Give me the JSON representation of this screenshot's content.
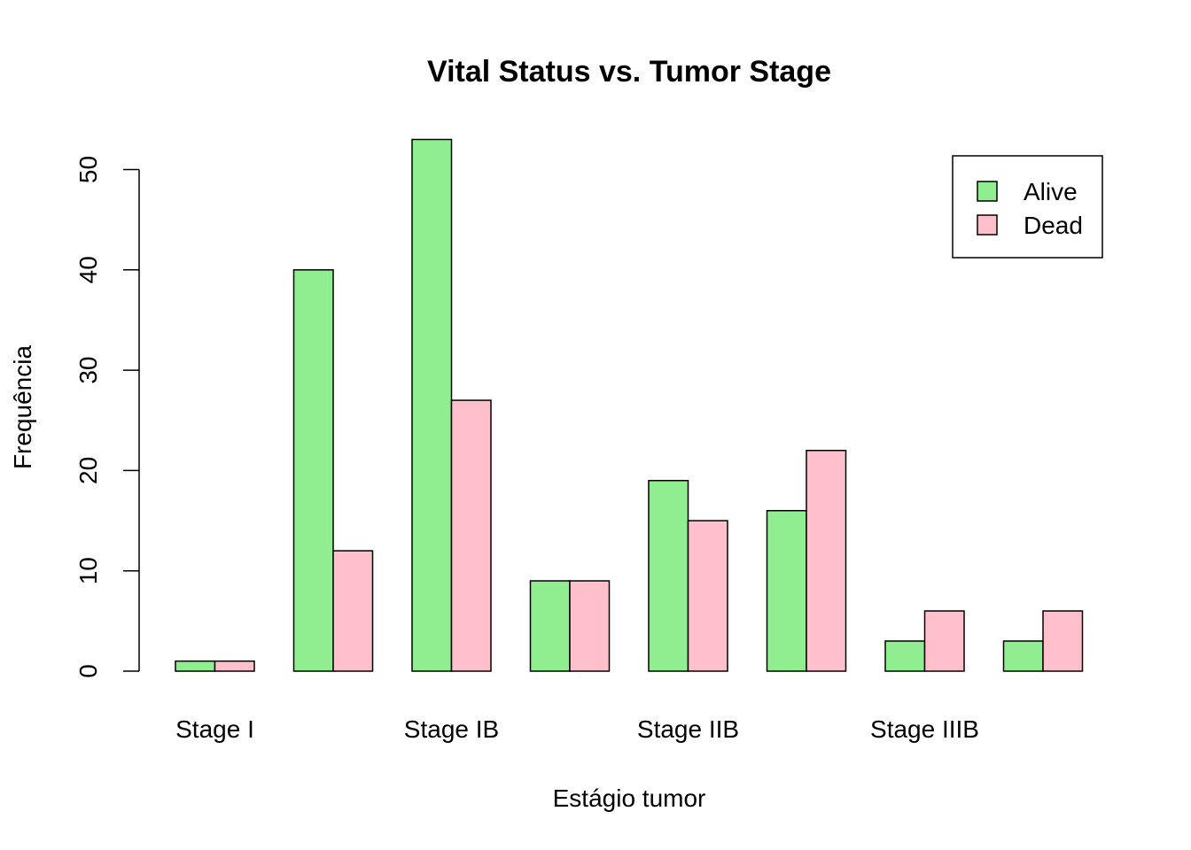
{
  "chart_data": {
    "type": "bar",
    "title": "Vital Status vs. Tumor Stage",
    "xlabel": "Estágio tumor",
    "ylabel": "Frequência",
    "tick_labels": [
      "Stage I",
      "Stage IB",
      "Stage IIB",
      "Stage IIIB"
    ],
    "tick_label_groups": [
      0,
      2,
      4,
      6
    ],
    "ylim": [
      0,
      53
    ],
    "yticks": [
      0,
      10,
      20,
      30,
      40,
      50
    ],
    "grid": false,
    "legend_position": "top-right",
    "colors": {
      "Alive": "#90EE90",
      "Dead": "#FFC0CB"
    },
    "series": [
      {
        "name": "Alive",
        "values": [
          1,
          40,
          53,
          9,
          19,
          16,
          3,
          3
        ]
      },
      {
        "name": "Dead",
        "values": [
          1,
          12,
          27,
          9,
          15,
          22,
          6,
          6
        ]
      }
    ]
  }
}
